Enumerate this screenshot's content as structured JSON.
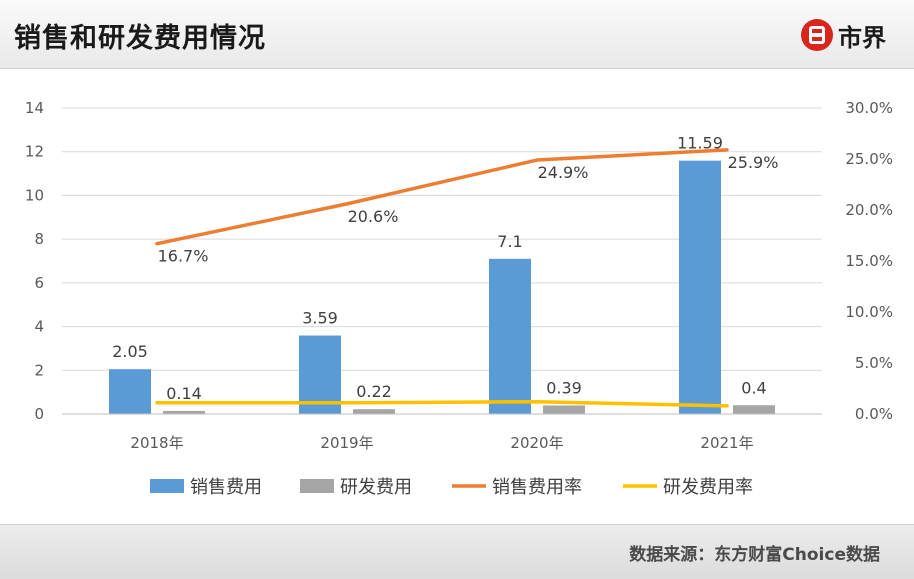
{
  "header": {
    "title": "销售和研发费用情况",
    "logo_text": "市界"
  },
  "footer": {
    "source": "数据来源：东方财富Choice数据"
  },
  "colors": {
    "sales": "#5b9bd5",
    "rd": "#a5a5a5",
    "sales_rate": "#ed7d31",
    "rd_rate": "#ffc000"
  },
  "chart_data": {
    "type": "bar",
    "categories": [
      "2018年",
      "2019年",
      "2020年",
      "2021年"
    ],
    "series": [
      {
        "name": "销售费用",
        "type": "bar",
        "axis": "left",
        "values": [
          2.05,
          3.59,
          7.1,
          11.59
        ],
        "labels": [
          "2.05",
          "3.59",
          "7.1",
          "11.59"
        ]
      },
      {
        "name": "研发费用",
        "type": "bar",
        "axis": "left",
        "values": [
          0.14,
          0.22,
          0.39,
          0.4
        ],
        "labels": [
          "0.14",
          "0.22",
          "0.39",
          "0.4"
        ]
      },
      {
        "name": "销售费用率",
        "type": "line",
        "axis": "right",
        "values": [
          16.7,
          20.6,
          24.9,
          25.9
        ],
        "labels": [
          "16.7%",
          "20.6%",
          "24.9%",
          "25.9%"
        ]
      },
      {
        "name": "研发费用率",
        "type": "line",
        "axis": "right",
        "values": [
          1.1,
          1.1,
          1.2,
          0.8
        ]
      }
    ],
    "y_left": {
      "ylim": [
        0,
        14
      ],
      "ticks": [
        "0",
        "2",
        "4",
        "6",
        "8",
        "10",
        "12",
        "14"
      ]
    },
    "y_right": {
      "ylim": [
        0,
        30
      ],
      "ticks": [
        "0.0%",
        "5.0%",
        "10.0%",
        "15.0%",
        "20.0%",
        "25.0%",
        "30.0%"
      ]
    },
    "grid": true,
    "legend_position": "bottom"
  }
}
